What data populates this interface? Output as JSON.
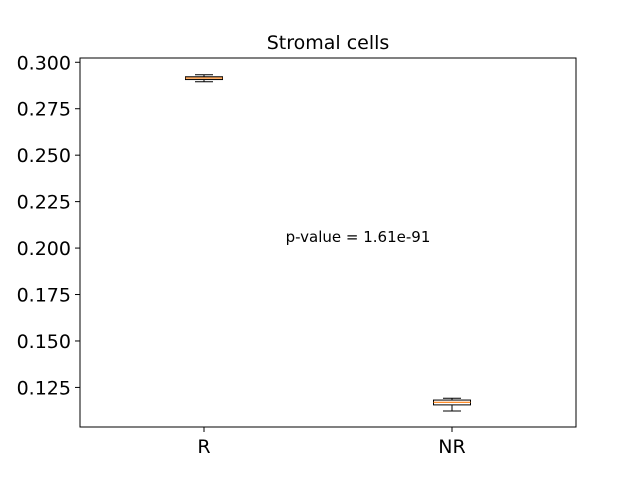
{
  "chart_data": {
    "type": "box",
    "title": "Stromal cells",
    "xlabel": "",
    "ylabel": "",
    "categories": [
      "R",
      "NR"
    ],
    "boxes": [
      {
        "category": "R",
        "whisker_low": 0.2895,
        "q1": 0.2907,
        "median": 0.2915,
        "q3": 0.2922,
        "whisker_high": 0.2933
      },
      {
        "category": "NR",
        "whisker_low": 0.1123,
        "q1": 0.1156,
        "median": 0.117,
        "q3": 0.1182,
        "whisker_high": 0.1192
      }
    ],
    "ylim": [
      0.1037,
      0.3023
    ],
    "yticks": [
      0.125,
      0.15,
      0.175,
      0.2,
      0.225,
      0.25,
      0.275,
      0.3
    ],
    "ytick_labels": [
      "0.125",
      "0.150",
      "0.175",
      "0.200",
      "0.225",
      "0.250",
      "0.275",
      "0.300"
    ],
    "annotation": {
      "text": "p-value = 1.61e-91"
    },
    "grid": false,
    "box_color": "#000000",
    "median_color": "#ff7f0e"
  }
}
